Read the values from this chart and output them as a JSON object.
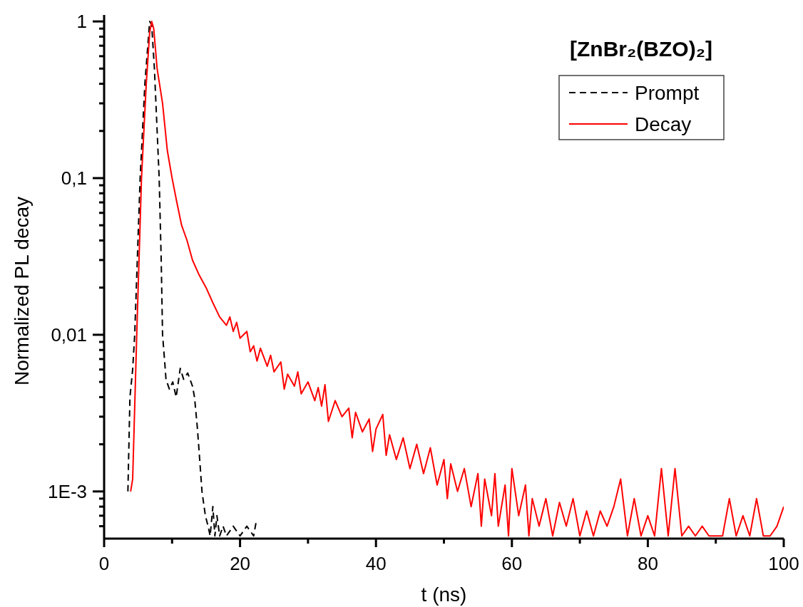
{
  "chart_data": {
    "type": "line",
    "title": "[ZnBr₂(BZO)₂]",
    "xlabel": "t (ns)",
    "ylabel": "Normalized PL decay",
    "log": "y",
    "legend": "top right",
    "xlim": [
      0,
      100
    ],
    "ylim": [
      0.0005,
      1.1
    ],
    "xticks": [
      0,
      {
        "value": 10,
        "label": null
      },
      20,
      {
        "value": 30,
        "label": null
      },
      40,
      {
        "value": 50,
        "label": null
      },
      60,
      {
        "value": 70,
        "label": null
      },
      80,
      {
        "value": 90,
        "label": null
      },
      100
    ],
    "yticks": [
      {
        "value": 0.0006,
        "label": null
      },
      {
        "value": 0.0007,
        "label": null
      },
      {
        "value": 0.0008,
        "label": null
      },
      {
        "value": 0.0009,
        "label": null
      },
      {
        "value": 0.001,
        "label": "1E-3"
      },
      {
        "value": 0.002,
        "label": null
      },
      {
        "value": 0.003,
        "label": null
      },
      {
        "value": 0.004,
        "label": null
      },
      {
        "value": 0.005,
        "label": null
      },
      {
        "value": 0.006,
        "label": null
      },
      {
        "value": 0.007,
        "label": null
      },
      {
        "value": 0.008,
        "label": null
      },
      {
        "value": 0.009,
        "label": null
      },
      {
        "value": 0.01,
        "label": "0,01"
      },
      {
        "value": 0.02,
        "label": null
      },
      {
        "value": 0.03,
        "label": null
      },
      {
        "value": 0.04,
        "label": null
      },
      {
        "value": 0.05,
        "label": null
      },
      {
        "value": 0.06,
        "label": null
      },
      {
        "value": 0.07,
        "label": null
      },
      {
        "value": 0.08,
        "label": null
      },
      {
        "value": 0.09,
        "label": null
      },
      {
        "value": 0.1,
        "label": "0,1"
      },
      {
        "value": 0.2,
        "label": null
      },
      {
        "value": 0.3,
        "label": null
      },
      {
        "value": 0.4,
        "label": null
      },
      {
        "value": 0.5,
        "label": null
      },
      {
        "value": 0.6,
        "label": null
      },
      {
        "value": 0.7,
        "label": null
      },
      {
        "value": 0.8,
        "label": null
      },
      {
        "value": 0.9,
        "label": null
      },
      {
        "value": 1,
        "label": "1"
      }
    ],
    "series": [
      {
        "name": "Prompt",
        "color": "#000000",
        "line_style": "dashed",
        "x": [
          3.5,
          3.8,
          4.2,
          4.5,
          5.3,
          6.0,
          6.7,
          7.0,
          7.4,
          7.8,
          8.1,
          8.4,
          8.6,
          9.0,
          9.1,
          9.6,
          10.1,
          10.6,
          11.2,
          11.7,
          12.3,
          13.0,
          13.3,
          13.7,
          13.9,
          14.4,
          14.9,
          15.3,
          15.6,
          16.0,
          16.3,
          16.6,
          17.0,
          17.5,
          18.0,
          19.0,
          20.0,
          21.0,
          22.0,
          22.4
        ],
        "values": [
          0.001,
          0.004,
          0.006,
          0.01,
          0.1,
          0.4,
          1,
          0.95,
          0.5,
          0.2,
          0.1,
          0.03,
          0.01,
          0.006,
          0.0052,
          0.0045,
          0.005,
          0.004,
          0.0061,
          0.0052,
          0.0057,
          0.0047,
          0.004,
          0.0026,
          0.002,
          0.001,
          0.0007,
          0.0006,
          0.00052,
          0.0008,
          0.00052,
          0.0007,
          0.00052,
          0.0006,
          0.00052,
          0.0006,
          0.00052,
          0.0006,
          0.00052,
          0.00065
        ]
      },
      {
        "name": "Decay",
        "color": "#ff0000",
        "line_style": "solid",
        "x": [
          3.9,
          4.2,
          4.8,
          5.5,
          6.2,
          6.7,
          7.0,
          7.3,
          7.8,
          8.6,
          9.3,
          10.0,
          10.7,
          11.4,
          12.2,
          13,
          14,
          15,
          16,
          17,
          18,
          18.5,
          19,
          19.5,
          20,
          21,
          21.5,
          22,
          22.5,
          23,
          24,
          24.5,
          25,
          26,
          26.5,
          27,
          28,
          28.5,
          29,
          30,
          31,
          31.5,
          32,
          32.5,
          33,
          34,
          35,
          36,
          36.5,
          37,
          38,
          39,
          39.5,
          40,
          41,
          41.5,
          42,
          43,
          44,
          45,
          46,
          47,
          48,
          49,
          50,
          50.5,
          51,
          52,
          53,
          54,
          55,
          55.5,
          56,
          57,
          57.5,
          58,
          59,
          59.5,
          60,
          61,
          62,
          62.5,
          63,
          64,
          65,
          66,
          67,
          68,
          69,
          70,
          71,
          72,
          73,
          74,
          75,
          76,
          77,
          78,
          79,
          80,
          81,
          82,
          83,
          84,
          85,
          86,
          87,
          88,
          89,
          91,
          92,
          93,
          94,
          95,
          96,
          97,
          98,
          99,
          100
        ],
        "values": [
          0.001,
          0.0012,
          0.01,
          0.1,
          0.4,
          0.85,
          1,
          0.9,
          0.5,
          0.3,
          0.15,
          0.1,
          0.07,
          0.05,
          0.04,
          0.03,
          0.024,
          0.02,
          0.016,
          0.013,
          0.0115,
          0.013,
          0.0105,
          0.012,
          0.0095,
          0.0105,
          0.0078,
          0.0085,
          0.0068,
          0.0082,
          0.0063,
          0.0074,
          0.0058,
          0.0067,
          0.0045,
          0.0056,
          0.0047,
          0.0058,
          0.0042,
          0.005,
          0.0038,
          0.0046,
          0.0035,
          0.0048,
          0.0028,
          0.0038,
          0.003,
          0.0034,
          0.0022,
          0.0032,
          0.0024,
          0.0029,
          0.0018,
          0.0025,
          0.0031,
          0.0017,
          0.0023,
          0.0016,
          0.0022,
          0.0014,
          0.002,
          0.0013,
          0.0019,
          0.0011,
          0.0016,
          0.0009,
          0.0015,
          0.001,
          0.0014,
          0.0008,
          0.0013,
          0.0006,
          0.0012,
          0.0007,
          0.0013,
          0.0006,
          0.0011,
          0.00052,
          0.0014,
          0.0007,
          0.0011,
          0.00052,
          0.0009,
          0.0006,
          0.0009,
          0.00052,
          0.00085,
          0.0006,
          0.0009,
          0.00052,
          0.00075,
          0.00052,
          0.00075,
          0.0006,
          0.0008,
          0.0012,
          0.00052,
          0.0009,
          0.00052,
          0.0007,
          0.00052,
          0.0014,
          0.00052,
          0.0014,
          0.00052,
          0.0006,
          0.00052,
          0.0006,
          0.00052,
          0.00052,
          0.0009,
          0.00052,
          0.0007,
          0.00052,
          0.0009,
          0.00052,
          0.00052,
          0.0006,
          0.0008
        ]
      }
    ]
  }
}
